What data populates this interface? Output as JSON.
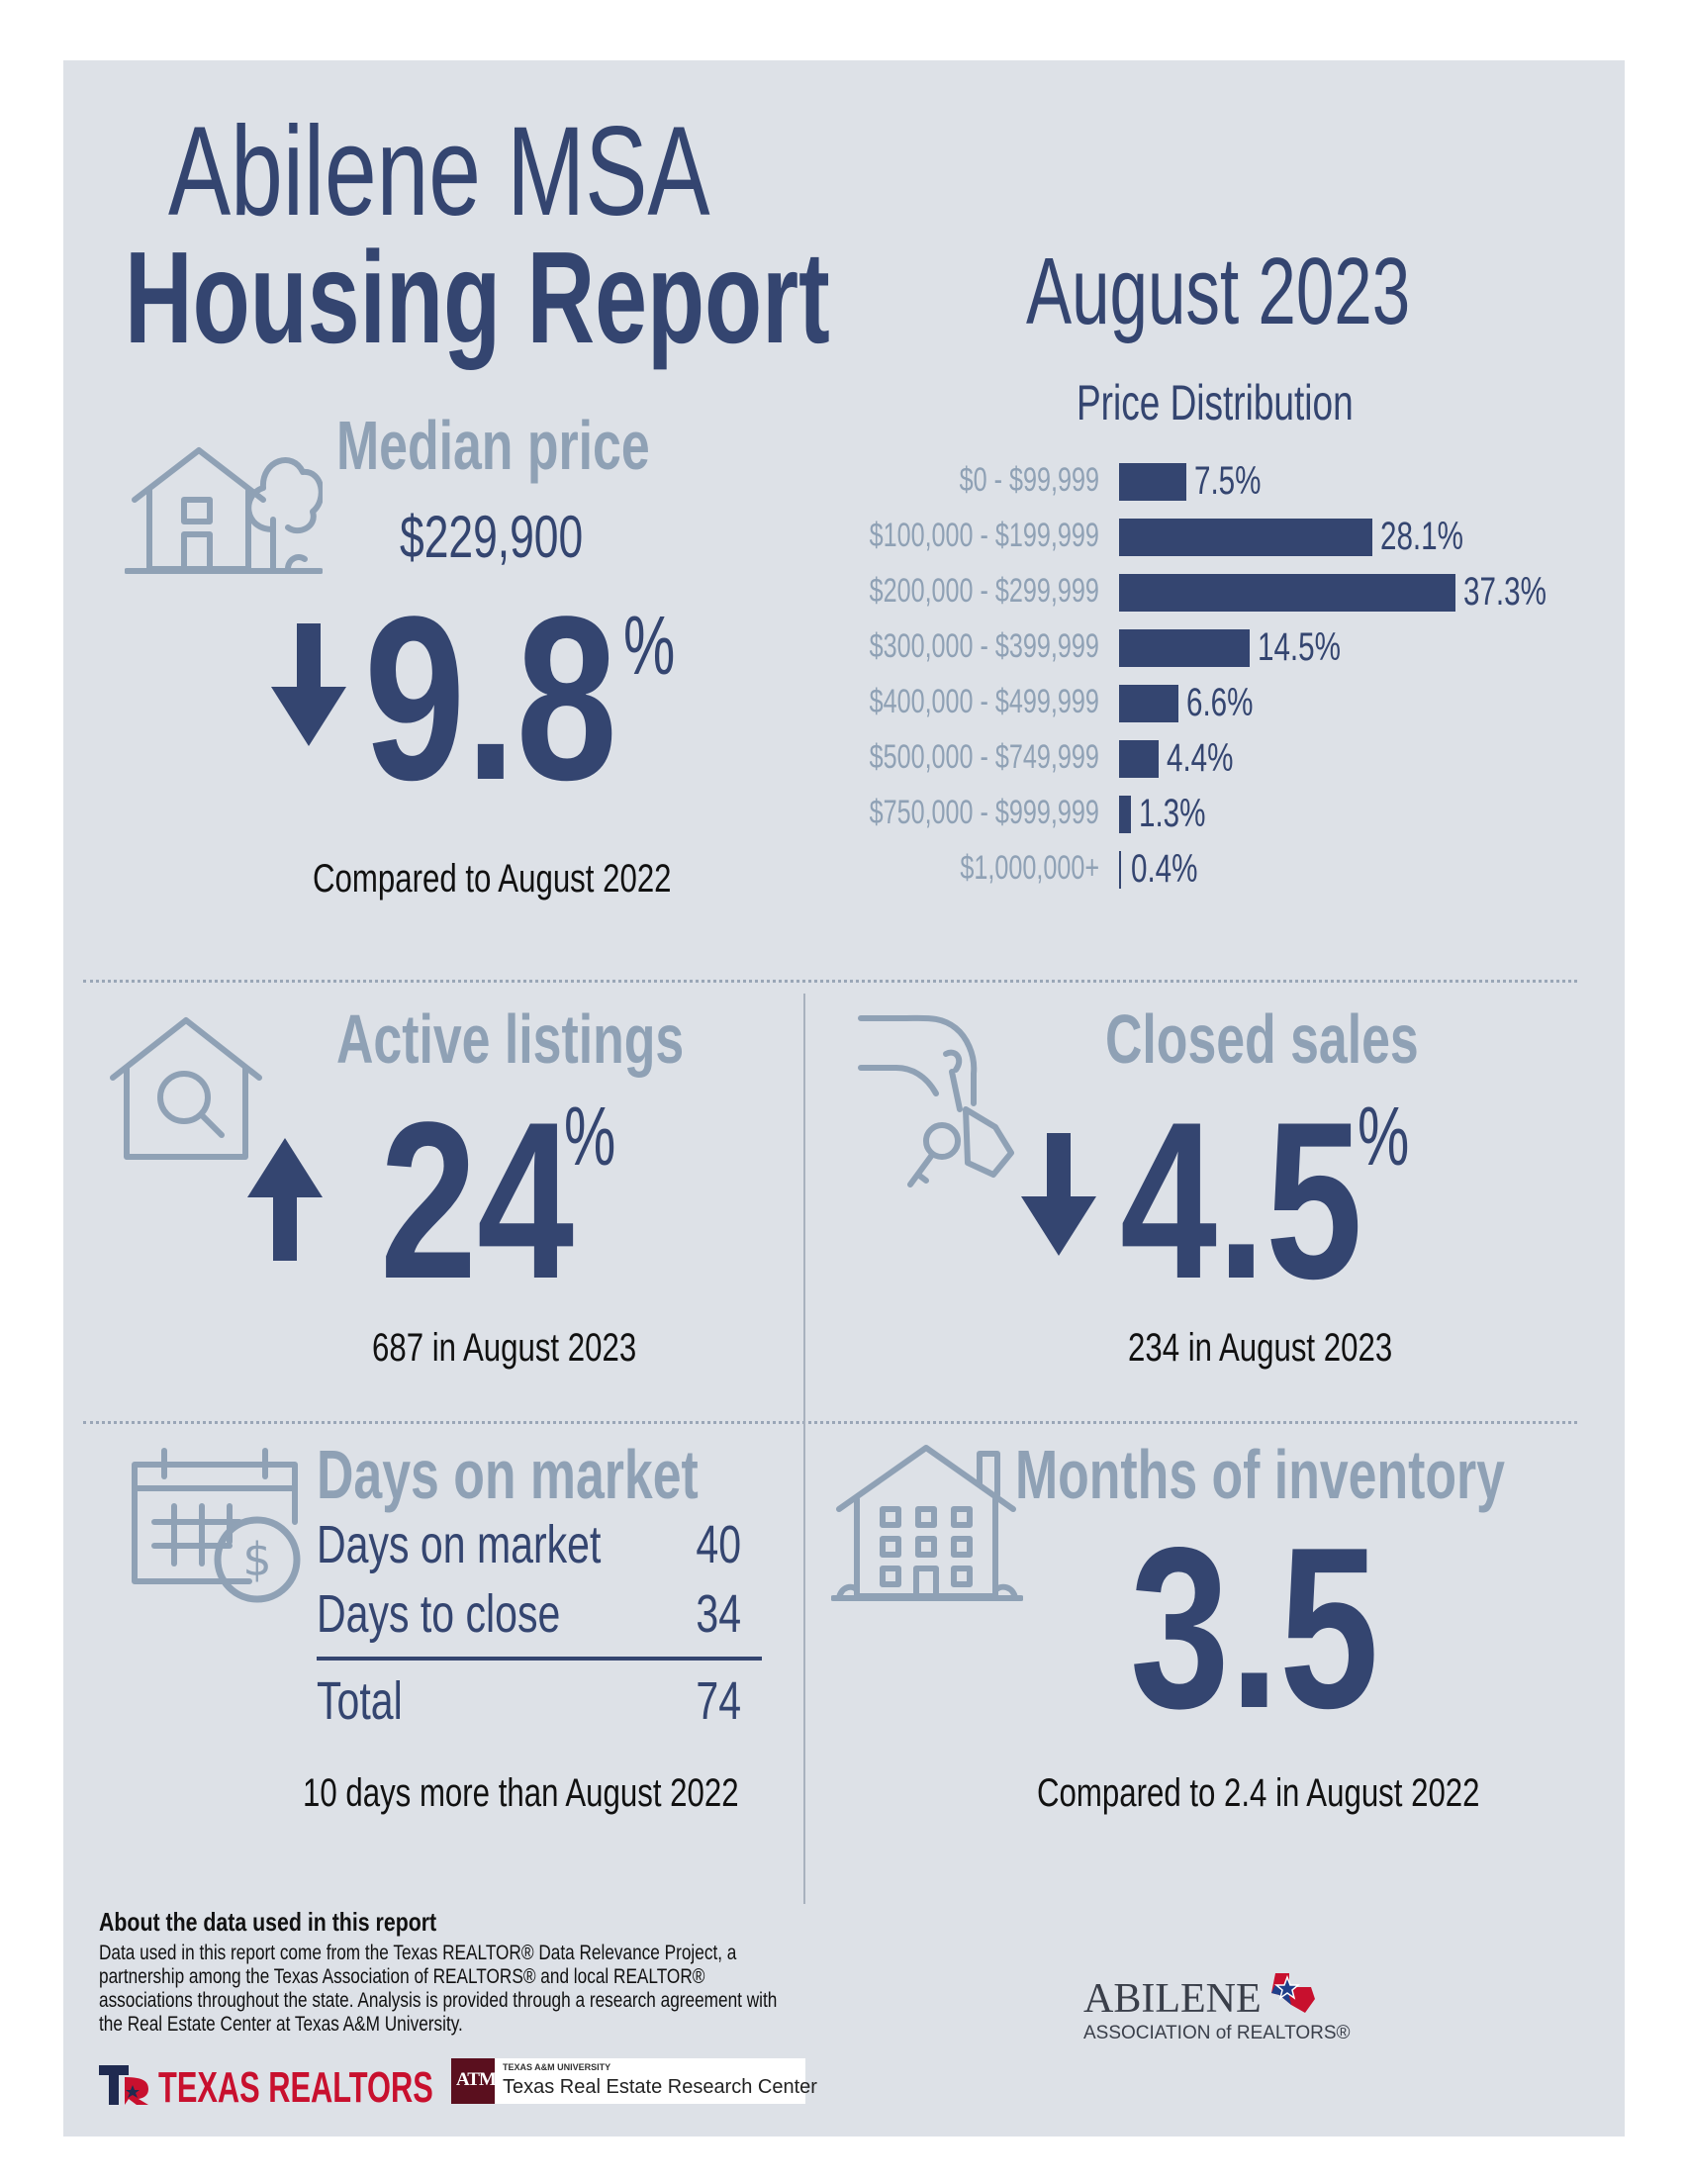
{
  "header": {
    "title_line1": "Abilene MSA",
    "title_line2": "Housing Report",
    "period": "August 2023"
  },
  "median_price": {
    "heading": "Median price",
    "value": "$229,900",
    "direction": "down",
    "change": "9.8",
    "unit": "%",
    "comparison": "Compared to August 2022"
  },
  "price_distribution": {
    "heading": "Price Distribution",
    "rows": [
      {
        "range": "$0 - $99,999",
        "pct": "7.5%"
      },
      {
        "range": "$100,000 - $199,999",
        "pct": "28.1%"
      },
      {
        "range": "$200,000 - $299,999",
        "pct": "37.3%"
      },
      {
        "range": "$300,000 - $399,999",
        "pct": "14.5%"
      },
      {
        "range": "$400,000 - $499,999",
        "pct": "6.6%"
      },
      {
        "range": "$500,000 - $749,999",
        "pct": "4.4%"
      },
      {
        "range": "$750,000 - $999,999",
        "pct": "1.3%"
      },
      {
        "range": "$1,000,000+",
        "pct": "0.4%"
      }
    ]
  },
  "chart_data": {
    "type": "bar",
    "title": "Price Distribution",
    "categories": [
      "$0 - $99,999",
      "$100,000 - $199,999",
      "$200,000 - $299,999",
      "$300,000 - $399,999",
      "$400,000 - $499,999",
      "$500,000 - $749,999",
      "$750,000 - $999,999",
      "$1,000,000+"
    ],
    "values": [
      7.5,
      28.1,
      37.3,
      14.5,
      6.6,
      4.4,
      1.3,
      0.4
    ],
    "xlabel": "",
    "ylabel": "",
    "orientation": "horizontal",
    "color": "#344570"
  },
  "active_listings": {
    "heading": "Active listings",
    "direction": "up",
    "change": "24",
    "unit": "%",
    "detail": "687 in August 2023"
  },
  "closed_sales": {
    "heading": "Closed sales",
    "direction": "down",
    "change": "4.5",
    "unit": "%",
    "detail": "234 in August 2023"
  },
  "days_on_market": {
    "heading": "Days on market",
    "rows": [
      {
        "label": "Days on market",
        "value": "40"
      },
      {
        "label": "Days to close",
        "value": "34"
      }
    ],
    "total_label": "Total",
    "total_value": "74",
    "detail": "10 days more than August 2022"
  },
  "months_inventory": {
    "heading": "Months of inventory",
    "value": "3.5",
    "detail": "Compared to 2.4 in August 2022"
  },
  "footer": {
    "about_heading": "About the data used in this report",
    "about_text": "Data used in this report come from the Texas REALTOR® Data Relevance Project, a partnership among the Texas Association of REALTORS® and local REALTOR® associations throughout the state. Analysis is provided through a research agreement with the Real Estate Center at Texas A&M University.",
    "texas_realtors": "TEXAS REALTORS",
    "tamu_small": "TEXAS A&M UNIVERSITY",
    "tamu_center": "Texas Real Estate Research Center",
    "tamu_mark": "ATM",
    "abilene_name": "ABILENE",
    "abilene_assoc": "ASSOCIATION of REALTORS®"
  },
  "colors": {
    "navy": "#344570",
    "muted": "#8fa1b5",
    "panel": "#dde1e7",
    "red": "#c8102e"
  },
  "icons": [
    "house-tree-icon",
    "house-search-icon",
    "hand-key-icon",
    "calendar-dollar-icon",
    "apartment-building-icon",
    "arrow-down-icon",
    "arrow-up-icon"
  ]
}
